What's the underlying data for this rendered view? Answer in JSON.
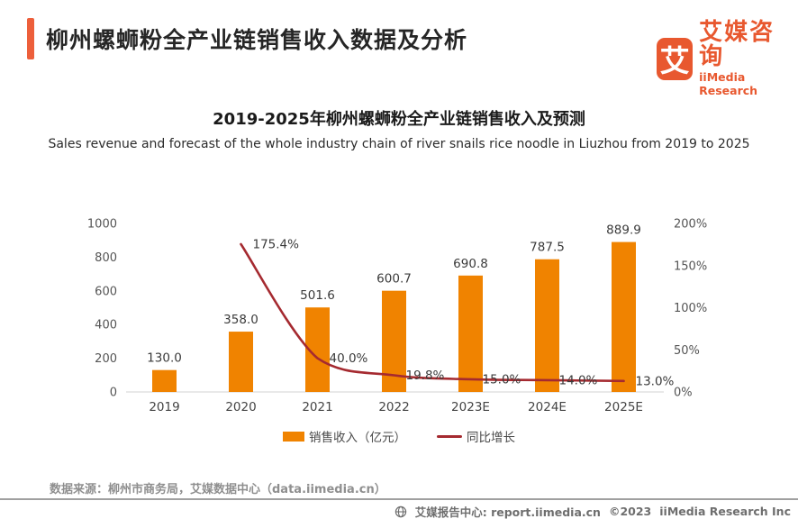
{
  "header": {
    "title": "柳州螺蛳粉全产业链销售收入数据及分析",
    "accent_color": "#ED5F3B",
    "logo": {
      "glyph": "艾",
      "brand_cn": "艾媒咨询",
      "brand_en": "iiMedia Research",
      "color": "#E8582F"
    }
  },
  "chart": {
    "title": "2019-2025年柳州螺蛳粉全产业链销售收入及预测",
    "subtitle": "Sales revenue and forecast of the whole industry chain of river snails rice noodle in Liuzhou  from 2019 to 2025"
  },
  "chart_data": {
    "type": "bar",
    "categories": [
      "2019",
      "2020",
      "2021",
      "2022",
      "2023E",
      "2024E",
      "2025E"
    ],
    "series": [
      {
        "name": "销售收入（亿元）",
        "type": "bar",
        "axis": "left",
        "color": "#F08300",
        "values": [
          130.0,
          358.0,
          501.6,
          600.7,
          690.8,
          787.5,
          889.9
        ],
        "labels": [
          "130.0",
          "358.0",
          "501.6",
          "600.7",
          "690.8",
          "787.5",
          "889.9"
        ]
      },
      {
        "name": "同比增长",
        "type": "line",
        "axis": "right",
        "color": "#A52A30",
        "values": [
          null,
          175.4,
          40.0,
          19.8,
          15.0,
          14.0,
          13.0
        ],
        "labels": [
          "",
          "175.4%",
          "40.0%",
          "19.8%",
          "15.0%",
          "14.0%",
          "13.0%"
        ]
      }
    ],
    "left_axis": {
      "min": 0,
      "max": 1000,
      "ticks": [
        0,
        200,
        400,
        600,
        800,
        1000
      ]
    },
    "right_axis": {
      "min": 0,
      "max": 200,
      "ticks": [
        "0%",
        "50%",
        "100%",
        "150%",
        "200%"
      ]
    },
    "grid": false,
    "legend_position": "bottom"
  },
  "footer": {
    "source": "数据来源：柳州市商务局，艾媒数据中心（data.iimedia.cn）",
    "report_center": "艾媒报告中心: report.iimedia.cn",
    "copyright": "©2023",
    "company": "iiMedia Research Inc"
  }
}
